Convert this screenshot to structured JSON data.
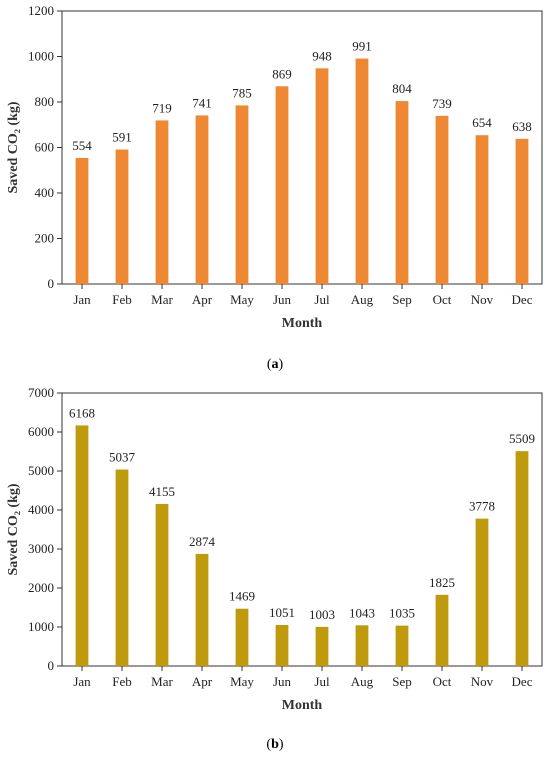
{
  "chart_data": [
    {
      "type": "bar",
      "panel_label": "a",
      "categories": [
        "Jan",
        "Feb",
        "Mar",
        "Apr",
        "May",
        "Jun",
        "Jul",
        "Aug",
        "Sep",
        "Oct",
        "Nov",
        "Dec"
      ],
      "values": [
        554,
        591,
        719,
        741,
        785,
        869,
        948,
        991,
        804,
        739,
        654,
        638
      ],
      "xlabel": "Month",
      "ylabel": "Saved CO₂ (kg)",
      "ylim": [
        0,
        1200
      ],
      "yticks": [
        0,
        200,
        400,
        600,
        800,
        1000,
        1200
      ],
      "bar_color": "#EE8833",
      "grid": false
    },
    {
      "type": "bar",
      "panel_label": "b",
      "categories": [
        "Jan",
        "Feb",
        "Mar",
        "Apr",
        "May",
        "Jun",
        "Jul",
        "Aug",
        "Sep",
        "Oct",
        "Nov",
        "Dec"
      ],
      "values": [
        6168,
        5037,
        4155,
        2874,
        1469,
        1051,
        1003,
        1043,
        1035,
        1825,
        3778,
        5509
      ],
      "xlabel": "Month",
      "ylabel": "Saved CO₂ (kg)",
      "ylim": [
        0,
        7000
      ],
      "yticks": [
        0,
        1000,
        2000,
        3000,
        4000,
        5000,
        6000,
        7000
      ],
      "bar_color": "#BF9A0C",
      "grid": false
    }
  ]
}
